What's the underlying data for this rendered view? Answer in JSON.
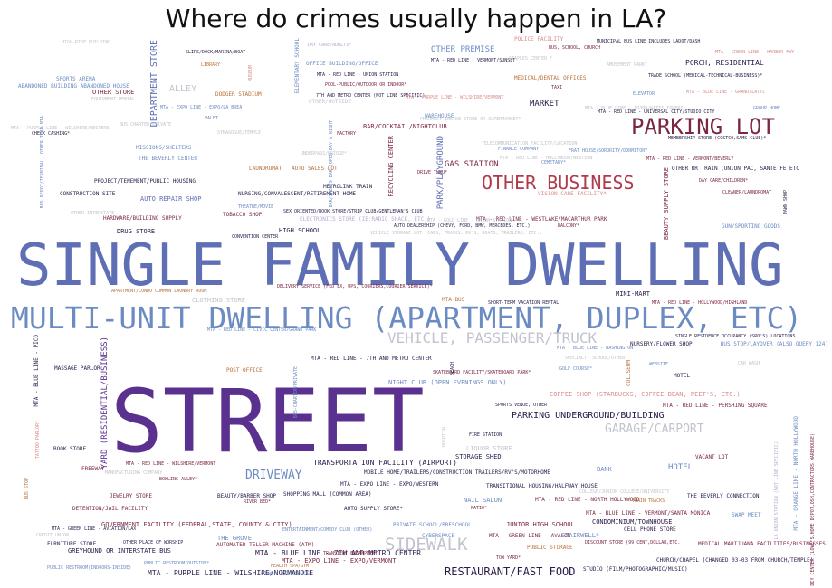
{
  "title": "Where do crimes usually happen in LA?",
  "colors": {
    "blue": "#5f6fb5",
    "steel": "#6b8bc3",
    "purple": "#5b3190",
    "maroon": "#7b2744",
    "red": "#b03a4a",
    "brown": "#b8703a",
    "grey": "#c0c4cc",
    "lilac": "#b7a9d6",
    "dark": "#2a1b4a",
    "pink": "#d98a8a"
  },
  "words": [
    {
      "text": "SINGLE FAMILY DWELLING",
      "color": "blue"
    },
    {
      "text": "STREET",
      "color": "purple"
    },
    {
      "text": "MULTI-UNIT DWELLING (APARTMENT, DUPLEX, ETC)",
      "color": "steel"
    },
    {
      "text": "PARKING LOT",
      "color": "maroon"
    },
    {
      "text": "OTHER BUSINESS",
      "color": "red"
    },
    {
      "text": "SIDEWALK",
      "color": "grey"
    },
    {
      "text": "VEHICLE, PASSENGER/TRUCK",
      "color": "grey"
    },
    {
      "text": "DRIVEWAY",
      "color": "steel"
    },
    {
      "text": "GARAGE/CARPORT",
      "color": "grey"
    },
    {
      "text": "RESTAURANT/FAST FOOD",
      "color": "dark"
    },
    {
      "text": "PARKING UNDERGROUND/BUILDING",
      "color": "dark"
    },
    {
      "text": "DEPARTMENT STORE",
      "color": "blue"
    },
    {
      "text": "YARD (RESIDENTIAL/BUSINESS)",
      "color": "purple"
    },
    {
      "text": "ALLEY",
      "color": "grey"
    },
    {
      "text": "OTHER PREMISE",
      "color": "steel"
    },
    {
      "text": "MARKET",
      "color": "dark"
    },
    {
      "text": "GAS STATION",
      "color": "maroon"
    },
    {
      "text": "HOTEL",
      "color": "steel"
    },
    {
      "text": "PORCH, RESIDENTIAL",
      "color": "dark"
    },
    {
      "text": "HIGH-RISE BUILDING",
      "color": "grey"
    },
    {
      "text": "SLIPS/DOCK/MARINA/BOAT",
      "color": "dark"
    },
    {
      "text": "LIBRARY",
      "color": "brown"
    },
    {
      "text": "MUSEUM",
      "color": "pink"
    },
    {
      "text": "ELEMENTARY SCHOOL",
      "color": "steel"
    },
    {
      "text": "DAY CARE/ADULTS*",
      "color": "lilac"
    },
    {
      "text": "MTA - RED LINE - VERMONT/SUNSET",
      "color": "dark"
    },
    {
      "text": "POLICE FACILITY",
      "color": "pink"
    },
    {
      "text": "BUS, SCHOOL, CHURCH",
      "color": "maroon"
    },
    {
      "text": "MUNICIPAL BUS LINE INCLUDES LADOT/DASH",
      "color": "dark"
    },
    {
      "text": "MTA - GREEN LINE - HARBOR FWY",
      "color": "pink"
    },
    {
      "text": "SPORTS ARENA",
      "color": "steel"
    },
    {
      "text": "ABANDONED BUILDING ABANDONED HOUSE",
      "color": "steel"
    },
    {
      "text": "OTHER STORE",
      "color": "maroon"
    },
    {
      "text": "DODGER STADIUM",
      "color": "brown"
    },
    {
      "text": "OFFICE BUILDING/OFFICE",
      "color": "steel"
    },
    {
      "text": "MTA - RED LINE - UNION STATION",
      "color": "dark"
    },
    {
      "text": "MEDICAL/DENTAL OFFICES",
      "color": "brown"
    },
    {
      "text": "TRADE SCHOOL (MEDICAL-TECHNICAL-BUSINESS)*",
      "color": "dark"
    },
    {
      "text": "POOL-PUBLIC/OUTDOOR OR INDOOR*",
      "color": "maroon"
    },
    {
      "text": "7TH AND METRO CENTER (NOT LINE SPECIFIC)",
      "color": "dark"
    },
    {
      "text": "MTA - PURPLE LINE - WILSHIRE/VERMONT",
      "color": "pink"
    },
    {
      "text": "TAXI",
      "color": "maroon"
    },
    {
      "text": "ELEVATOR",
      "color": "steel"
    },
    {
      "text": "MTA - BLUE LINE - GRAND/LATTC",
      "color": "pink"
    },
    {
      "text": "EQUIPMENT RENTAL",
      "color": "grey"
    },
    {
      "text": "MTA - EXPO LINE - EXPO/LA BREA",
      "color": "steel"
    },
    {
      "text": "OTHER/OUTSIDE",
      "color": "grey"
    },
    {
      "text": "MTA - RED LINE - UNIVERSAL CITY/STUDIO CITY",
      "color": "dark"
    },
    {
      "text": "GROUP HOME",
      "color": "steel"
    },
    {
      "text": "VALET",
      "color": "steel"
    },
    {
      "text": "WAREHOUSE",
      "color": "steel"
    },
    {
      "text": "MTA - PURPLE LINE - WILSHIRE/WESTERN",
      "color": "grey"
    },
    {
      "text": "CHECK CASHING*",
      "color": "dark"
    },
    {
      "text": "SYNAGOGUE/TEMPLE",
      "color": "grey"
    },
    {
      "text": "FACTORY",
      "color": "maroon"
    },
    {
      "text": "BAR/COCKTAIL/NIGHTCLUB",
      "color": "maroon"
    },
    {
      "text": "MEMBERSHIP STORE (COSTCO,SAMS CLUB)*",
      "color": "dark"
    },
    {
      "text": "MISSIONS/SHELTERS",
      "color": "steel"
    },
    {
      "text": "THE BEVERLY CENTER",
      "color": "steel"
    },
    {
      "text": "FINANCE COMPANY",
      "color": "steel"
    },
    {
      "text": "FRAT HOUSE/SORORITY/DORMITORY",
      "color": "steel"
    },
    {
      "text": "MTA - RED LINE - VERMONT/BEVERLY",
      "color": "maroon"
    },
    {
      "text": "LAUNDROMAT",
      "color": "brown"
    },
    {
      "text": "AUTO SALES LOT",
      "color": "brown"
    },
    {
      "text": "OTHER RR TRAIN (UNION PAC, SANTE FE ETC",
      "color": "dark"
    },
    {
      "text": "PROJECT/TENEMENT/PUBLIC HOUSING",
      "color": "dark"
    },
    {
      "text": "DRIVE THRU*",
      "color": "maroon"
    },
    {
      "text": "CEMETARY*",
      "color": "steel"
    },
    {
      "text": "METROLINK TRAIN",
      "color": "dark"
    },
    {
      "text": "DAY CARE/CHILDREN*",
      "color": "maroon"
    },
    {
      "text": "CONSTRUCTION SITE",
      "color": "dark"
    },
    {
      "text": "NURSING/CONVALESCENT/RETIREMENT HOME",
      "color": "dark"
    },
    {
      "text": "VISION CARE FACILITY*",
      "color": "pink"
    },
    {
      "text": "CLEANER/LAUNDROMAT",
      "color": "maroon"
    },
    {
      "text": "AUTO REPAIR SHOP",
      "color": "blue"
    },
    {
      "text": "THEATRE/MOVIE",
      "color": "steel"
    },
    {
      "text": "SEX ORIENTED/BOOK STORE/STRIP CLUB/GENTLEMAN'S CLUB",
      "color": "dark"
    },
    {
      "text": "MTA - RED LINE - WESTLAKE/MACARTHUR PARK",
      "color": "maroon"
    },
    {
      "text": "HARDWARE/BUILDING SUPPLY",
      "color": "maroon"
    },
    {
      "text": "TOBACCO SHOP",
      "color": "maroon"
    },
    {
      "text": "ELECTRONICS STORE (IE:RADIO SHACK, ETC.)",
      "color": "lilac"
    },
    {
      "text": "AUTO DEALERSHIP (CHEVY, FORD, BMW, MERCEDES, ETC.)",
      "color": "dark"
    },
    {
      "text": "BALCONY*",
      "color": "maroon"
    },
    {
      "text": "GUN/SPORTING GOODS",
      "color": "steel"
    },
    {
      "text": "DRUG STORE",
      "color": "dark"
    },
    {
      "text": "HIGH SCHOOL",
      "color": "dark"
    },
    {
      "text": "VEHICLE STORAGE LOT (CARS, TRUCKS, RV'S, BOATS, TRAILERS, ETC.)",
      "color": "grey"
    },
    {
      "text": "CONVENTION CENTER",
      "color": "dark"
    },
    {
      "text": "PARK/PLAYGROUND",
      "color": "blue"
    },
    {
      "text": "RECYCLING CENTER",
      "color": "maroon"
    },
    {
      "text": "BEAUTY SUPPLY STORE",
      "color": "maroon"
    },
    {
      "text": "PAWN SHOP",
      "color": "dark"
    },
    {
      "text": "APARTMENT/CONDO COMMON LAUNDRY ROOM",
      "color": "brown"
    },
    {
      "text": "DELIVERY SERVICE (FED EX, UPS, COURIERS,COURIER SERVICE)*",
      "color": "maroon"
    },
    {
      "text": "MINI-MART",
      "color": "dark"
    },
    {
      "text": "CLOTHING STORE",
      "color": "grey"
    },
    {
      "text": "MTA BUS",
      "color": "brown"
    },
    {
      "text": "SHORT-TERM VACATION RENTAL",
      "color": "dark"
    },
    {
      "text": "MTA - RED LINE - HOLLYWOOD/HIGHLAND",
      "color": "maroon"
    },
    {
      "text": "MTA - RED LINE - CIVIC CENTER/GRAND PARK",
      "color": "steel"
    },
    {
      "text": "SINGLE RESIDENCE OCCUPANCY (SRO'S) LOCATIONS",
      "color": "dark"
    },
    {
      "text": "NURSERY/FLOWER SHOP",
      "color": "dark"
    },
    {
      "text": "BUS STOP/LAYOVER (ALSO QUERY 124)",
      "color": "steel"
    },
    {
      "text": "MTA - BLUE LINE - WASHINGTON",
      "color": "steel"
    },
    {
      "text": "MASSAGE PARLOR",
      "color": "dark"
    },
    {
      "text": "MTA - RED LINE - 7TH AND METRO CENTER",
      "color": "dark"
    },
    {
      "text": "SPECIALTY SCHOOL/OTHER",
      "color": "grey"
    },
    {
      "text": "WEBSITE",
      "color": "steel"
    },
    {
      "text": "CAR WASH",
      "color": "grey"
    },
    {
      "text": "POST OFFICE",
      "color": "brown"
    },
    {
      "text": "SKATEBOARD FACILITY/SKATEBOARD PARK*",
      "color": "maroon"
    },
    {
      "text": "GOLF COURSE*",
      "color": "steel"
    },
    {
      "text": "MOTEL",
      "color": "dark"
    },
    {
      "text": "NIGHT CLUB (OPEN EVENINGS ONLY)",
      "color": "steel"
    },
    {
      "text": "COFFEE SHOP (STARBUCKS, COFFEE BEAN, PEET'S, ETC.)",
      "color": "pink"
    },
    {
      "text": "MTA - RED LINE - PERSHING SQUARE",
      "color": "maroon"
    },
    {
      "text": "SPORTS VENUE, OTHER",
      "color": "dark"
    },
    {
      "text": "FIRE STATION",
      "color": "dark"
    },
    {
      "text": "BOOK STORE",
      "color": "dark"
    },
    {
      "text": "LIQUOR STORE",
      "color": "grey"
    },
    {
      "text": "STORAGE SHED",
      "color": "dark"
    },
    {
      "text": "TRANSPORTATION FACILITY (AIRPORT)",
      "color": "dark"
    },
    {
      "text": "VACANT LOT",
      "color": "maroon"
    },
    {
      "text": "FREEWAY",
      "color": "maroon"
    },
    {
      "text": "MTA - RED LINE - WILSHIRE/VERMONT",
      "color": "maroon"
    },
    {
      "text": "MOBILE HOME/TRAILERS/CONSTRUCTION TRAILERS/RV'S/MOTORHOME",
      "color": "dark"
    },
    {
      "text": "BANK",
      "color": "steel"
    },
    {
      "text": "MANUFACTURING COMPANY",
      "color": "grey"
    },
    {
      "text": "BOWLING ALLEY*",
      "color": "maroon"
    },
    {
      "text": "MTA - EXPO LINE - EXPO/WESTERN",
      "color": "dark"
    },
    {
      "text": "TRANSITIONAL HOUSING/HALFWAY HOUSE",
      "color": "dark"
    },
    {
      "text": "JEWELRY STORE",
      "color": "maroon"
    },
    {
      "text": "BEAUTY/BARBER SHOP",
      "color": "dark"
    },
    {
      "text": "SHOPPING MALL (COMMON AREA)",
      "color": "dark"
    },
    {
      "text": "NAIL SALON",
      "color": "steel"
    },
    {
      "text": "MTA - RED LINE - NORTH HOLLYWOOD",
      "color": "maroon"
    },
    {
      "text": "COLLEGE/JUNIOR COLLEGE/UNIVERSITY",
      "color": "grey"
    },
    {
      "text": "THE BEVERLY CONNECTION",
      "color": "dark"
    },
    {
      "text": "DETENTION/JAIL FACILITY",
      "color": "maroon"
    },
    {
      "text": "RIVER BED*",
      "color": "maroon"
    },
    {
      "text": "AUTO SUPPLY STORE*",
      "color": "dark"
    },
    {
      "text": "PATIO*",
      "color": "maroon"
    },
    {
      "text": "TRAIN TRACKS",
      "color": "brown"
    },
    {
      "text": "MTA - BLUE LINE - VERMONT/SANTA MONICA",
      "color": "maroon"
    },
    {
      "text": "SWAP MEET",
      "color": "steel"
    },
    {
      "text": "GOVERNMENT FACILITY (FEDERAL,STATE, COUNTY & CITY)",
      "color": "maroon"
    },
    {
      "text": "ENTERTAINMENT/COMEDY CLUB (OTHER)",
      "color": "steel"
    },
    {
      "text": "PRIVATE SCHOOL/PRESCHOOL",
      "color": "steel"
    },
    {
      "text": "JUNIOR HIGH SCHOOL",
      "color": "maroon"
    },
    {
      "text": "CONDOMINIUM/TOWNHOUSE",
      "color": "dark"
    },
    {
      "text": "CELL PHONE STORE",
      "color": "dark"
    },
    {
      "text": "MTA - GREEN LINE - AVIATION/LAX",
      "color": "dark"
    },
    {
      "text": "CREDIT UNION",
      "color": "grey"
    },
    {
      "text": "FURNITURE STORE",
      "color": "dark"
    },
    {
      "text": "OTHER PLACE OF WORSHIP",
      "color": "dark"
    },
    {
      "text": "THE GROVE",
      "color": "steel"
    },
    {
      "text": "CYBERSPACE",
      "color": "steel"
    },
    {
      "text": "MTA - GREEN LINE - AVALON",
      "color": "maroon"
    },
    {
      "text": "STAIRWELL*",
      "color": "steel"
    },
    {
      "text": "DISCOUNT STORE (99 CENT,DOLLAR,ETC.",
      "color": "maroon"
    },
    {
      "text": "GREYHOUND OR INTERSTATE BUS",
      "color": "dark"
    },
    {
      "text": "AUTOMATED TELLER MACHINE (ATM)",
      "color": "maroon"
    },
    {
      "text": "MTA - BLUE LINE - 7TH AND METRO CENTER",
      "color": "dark"
    },
    {
      "text": "PUBLIC STORAGE",
      "color": "brown"
    },
    {
      "text": "MEDICAL MARIJUANA FACILITIES/BUSINESSES",
      "color": "maroon"
    },
    {
      "text": "TRANSIENT ENCAMPMENT",
      "color": "maroon"
    },
    {
      "text": "TOW YARD*",
      "color": "maroon"
    },
    {
      "text": "PUBLIC RESTROOM(INDOORS-INSIDE)",
      "color": "steel"
    },
    {
      "text": "PUBLIC RESTROOM/OUTSIDE*",
      "color": "steel"
    },
    {
      "text": "MTA - EXPO LINE - EXPO/VERMONT",
      "color": "maroon"
    },
    {
      "text": "CHURCH/CHAPEL (CHANGED 03-03 FROM CHURCH/TEMPLE)",
      "color": "dark"
    },
    {
      "text": "HEALTH SPA/GYM",
      "color": "brown"
    },
    {
      "text": "MTA - PURPLE LINE - WILSHIRE/NORMANDIE",
      "color": "dark"
    },
    {
      "text": "OTHER RESIDENCE",
      "color": "steel"
    },
    {
      "text": "STUDIO (FILM/PHOTOGRAPHIC/MUSIC)",
      "color": "dark"
    },
    {
      "text": "BUS DEPOT/TERMINAL, OTHER THAN MTA",
      "color": "steel"
    },
    {
      "text": "MTA - BLUE LINE - PICO",
      "color": "dark"
    },
    {
      "text": "DIY CENTER (LOWE'S,HOME DEPOT,OSH,CONTRACTORS WAREHOUSE)",
      "color": "maroon"
    },
    {
      "text": "MTA - ORANGE LINE - NORTH HOLLYWOOD",
      "color": "steel"
    },
    {
      "text": "LA UNION STATION (NOT LINE SPECIFIC)",
      "color": "lilac"
    },
    {
      "text": "BAR/SPORTS BAR (OPEN DAY & NIGHT)",
      "color": "steel"
    },
    {
      "text": "TATTOO PARLOR*",
      "color": "pink"
    },
    {
      "text": "BUS-CHARTER/PRIVATE",
      "color": "steel"
    },
    {
      "text": "COLISEUM",
      "color": "brown"
    },
    {
      "text": "BEACH",
      "color": "dark"
    },
    {
      "text": "HOSPITAL",
      "color": "grey"
    },
    {
      "text": "BUS STOP",
      "color": "brown"
    },
    {
      "text": "STAPLES CENTER *",
      "color": "grey"
    },
    {
      "text": "MTA - BLUE LINE - 103RD/WATTS TOWERS",
      "color": "grey"
    },
    {
      "text": "PHARMACY INSIDE STORE OR SUPERMARKET*",
      "color": "grey"
    },
    {
      "text": "TELECOMMUNICATION FACILITY/LOCATION",
      "color": "grey"
    },
    {
      "text": "MTA - RED LINE - HOLLYWOOD/WESTERN",
      "color": "grey"
    },
    {
      "text": "UNDERPASS/BRIDGE*",
      "color": "grey"
    },
    {
      "text": "MTA - GOLD LINE - UNION STATION",
      "color": "grey"
    },
    {
      "text": "OTHER INTERSTATE",
      "color": "grey"
    },
    {
      "text": "AMUSEMENT PARK*",
      "color": "grey"
    },
    {
      "text": "BUS-CHARTER/PRIVATE",
      "color": "grey"
    },
    {
      "text": "SAVINGS & LOAN",
      "color": "grey"
    },
    {
      "text": "PET STORE",
      "color": "grey"
    }
  ]
}
